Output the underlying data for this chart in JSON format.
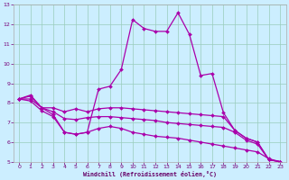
{
  "xlabel": "Windchill (Refroidissement éolien,°C)",
  "bg_color": "#cceeff",
  "line_color": "#aa00aa",
  "xlim": [
    -0.5,
    23.5
  ],
  "ylim": [
    5,
    13
  ],
  "xticks": [
    0,
    1,
    2,
    3,
    4,
    5,
    6,
    7,
    8,
    9,
    10,
    11,
    12,
    13,
    14,
    15,
    16,
    17,
    18,
    19,
    20,
    21,
    22,
    23
  ],
  "yticks": [
    5,
    6,
    7,
    8,
    9,
    10,
    11,
    12,
    13
  ],
  "lines": [
    {
      "x": [
        0,
        1,
        2,
        3,
        4,
        5,
        6,
        7,
        8,
        9,
        10,
        11,
        12,
        13,
        14,
        15,
        16,
        17,
        18,
        19,
        20,
        21,
        22,
        23
      ],
      "y": [
        8.2,
        8.4,
        7.75,
        7.4,
        6.5,
        6.4,
        6.5,
        8.7,
        8.85,
        9.7,
        12.25,
        11.8,
        11.65,
        11.65,
        12.6,
        11.5,
        9.4,
        9.5,
        7.5,
        6.6,
        6.2,
        6.0,
        5.1,
        5.0
      ],
      "markers": [
        0,
        1,
        2,
        3,
        4,
        5,
        6,
        7,
        8,
        9,
        10,
        11,
        12,
        13,
        14,
        15,
        16,
        17,
        18,
        19,
        20,
        21,
        22,
        23
      ]
    },
    {
      "x": [
        0,
        1,
        2,
        3,
        4,
        5,
        6,
        7,
        8,
        9,
        10,
        11,
        12,
        13,
        14,
        15,
        16,
        17,
        18,
        19,
        20,
        21,
        22,
        23
      ],
      "y": [
        8.2,
        8.35,
        7.75,
        7.75,
        7.55,
        7.7,
        7.55,
        7.7,
        7.75,
        7.75,
        7.7,
        7.65,
        7.6,
        7.55,
        7.5,
        7.45,
        7.4,
        7.35,
        7.3,
        6.6,
        6.2,
        6.0,
        5.1,
        5.0
      ],
      "markers": []
    },
    {
      "x": [
        0,
        1,
        2,
        3,
        4,
        5,
        6,
        7,
        8,
        9,
        10,
        11,
        12,
        13,
        14,
        15,
        16,
        17,
        18,
        19,
        20,
        21,
        22,
        23
      ],
      "y": [
        8.2,
        8.2,
        7.75,
        7.55,
        7.2,
        7.15,
        7.25,
        7.3,
        7.3,
        7.25,
        7.2,
        7.15,
        7.1,
        7.0,
        6.95,
        6.9,
        6.85,
        6.8,
        6.75,
        6.5,
        6.1,
        5.9,
        5.1,
        5.0
      ],
      "markers": []
    },
    {
      "x": [
        0,
        1,
        2,
        3,
        4,
        5,
        6,
        7,
        8,
        9,
        10,
        11,
        12,
        13,
        14,
        15,
        16,
        17,
        18,
        19,
        20,
        21,
        22,
        23
      ],
      "y": [
        8.2,
        8.1,
        7.6,
        7.3,
        6.5,
        6.4,
        6.5,
        6.7,
        6.8,
        6.7,
        6.5,
        6.4,
        6.3,
        6.25,
        6.2,
        6.1,
        6.0,
        5.9,
        5.8,
        5.7,
        5.6,
        5.5,
        5.15,
        5.0
      ],
      "markers": []
    }
  ]
}
